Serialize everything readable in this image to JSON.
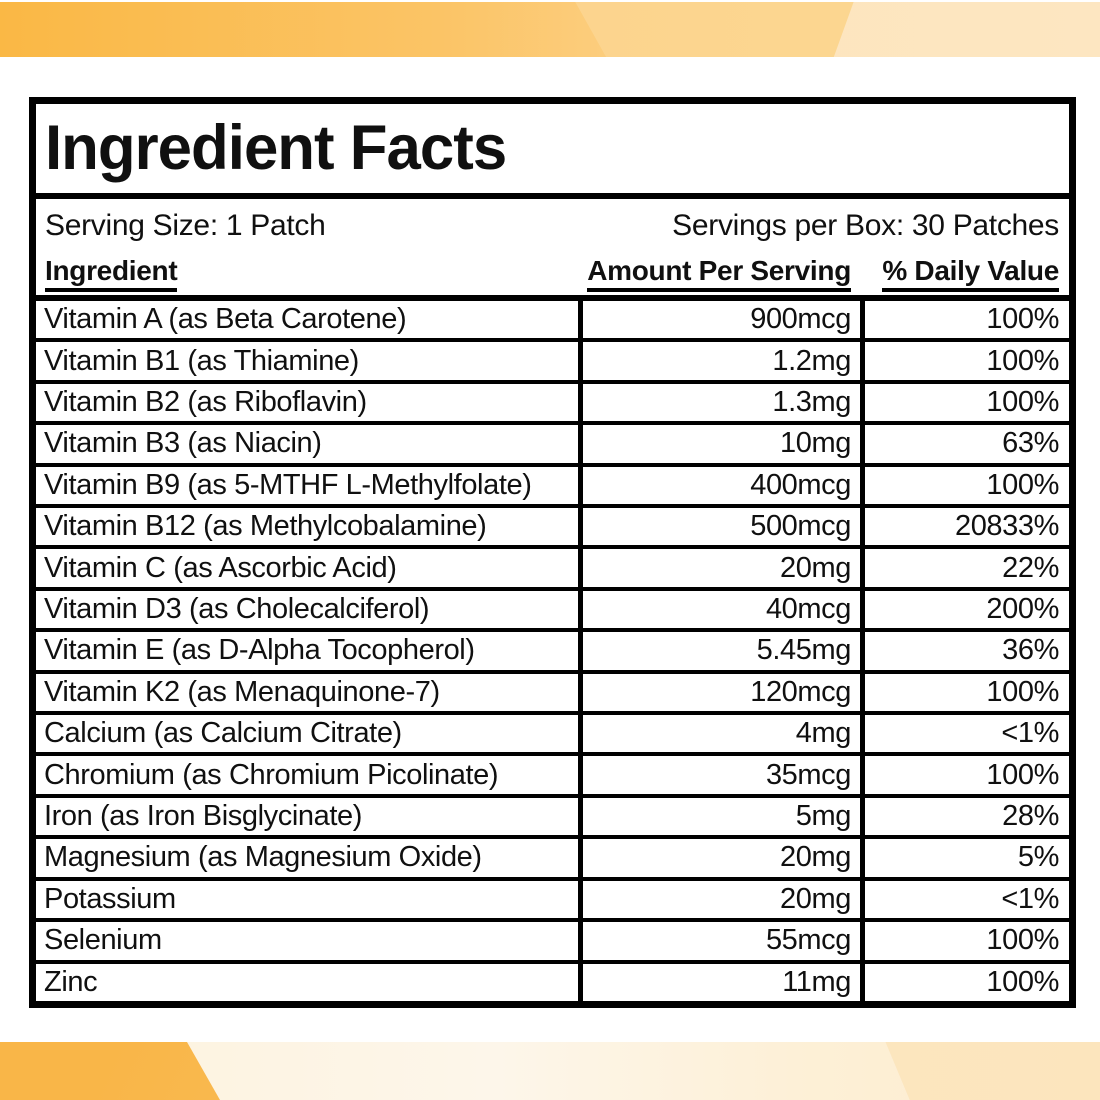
{
  "title": "Ingredient Facts",
  "serving": {
    "size_label": "Serving Size: 1 Patch",
    "per_box_label": "Servings per Box: 30 Patches"
  },
  "columns": {
    "ingredient": "Ingredient",
    "amount": "Amount Per Serving",
    "daily_value": "% Daily Value"
  },
  "rows": [
    {
      "ingredient": "Vitamin A (as Beta Carotene)",
      "amount": "900mcg",
      "dv": "100%"
    },
    {
      "ingredient": "Vitamin B1 (as Thiamine)",
      "amount": "1.2mg",
      "dv": "100%"
    },
    {
      "ingredient": "Vitamin B2 (as Riboflavin)",
      "amount": "1.3mg",
      "dv": "100%"
    },
    {
      "ingredient": "Vitamin B3 (as Niacin)",
      "amount": "10mg",
      "dv": "63%"
    },
    {
      "ingredient": "Vitamin B9 (as 5-MTHF L-Methylfolate)",
      "amount": "400mcg",
      "dv": "100%"
    },
    {
      "ingredient": "Vitamin B12 (as Methylcobalamine)",
      "amount": "500mcg",
      "dv": "20833%"
    },
    {
      "ingredient": "Vitamin C (as Ascorbic Acid)",
      "amount": "20mg",
      "dv": "22%"
    },
    {
      "ingredient": "Vitamin D3 (as Cholecalciferol)",
      "amount": "40mcg",
      "dv": "200%"
    },
    {
      "ingredient": "Vitamin E (as D-Alpha Tocopherol)",
      "amount": "5.45mg",
      "dv": "36%"
    },
    {
      "ingredient": "Vitamin K2 (as Menaquinone-7)",
      "amount": "120mcg",
      "dv": "100%"
    },
    {
      "ingredient": "Calcium (as Calcium Citrate)",
      "amount": "4mg",
      "dv": "<1%"
    },
    {
      "ingredient": "Chromium (as Chromium Picolinate)",
      "amount": "35mcg",
      "dv": "100%"
    },
    {
      "ingredient": "Iron (as Iron Bisglycinate)",
      "amount": "5mg",
      "dv": "28%"
    },
    {
      "ingredient": "Magnesium (as Magnesium Oxide)",
      "amount": "20mg",
      "dv": "5%"
    },
    {
      "ingredient": "Potassium",
      "amount": "20mg",
      "dv": "<1%"
    },
    {
      "ingredient": "Selenium",
      "amount": "55mcg",
      "dv": "100%"
    },
    {
      "ingredient": "Zinc",
      "amount": "11mg",
      "dv": "100%"
    }
  ],
  "colors": {
    "banner_orange": "#fab845",
    "banner_light_orange": "#fcd58d",
    "banner_pale_peach": "#fde5bf",
    "banner_cream": "#fdf3e0",
    "border_black": "#000000",
    "text_black": "#101010",
    "background_white": "#ffffff"
  }
}
